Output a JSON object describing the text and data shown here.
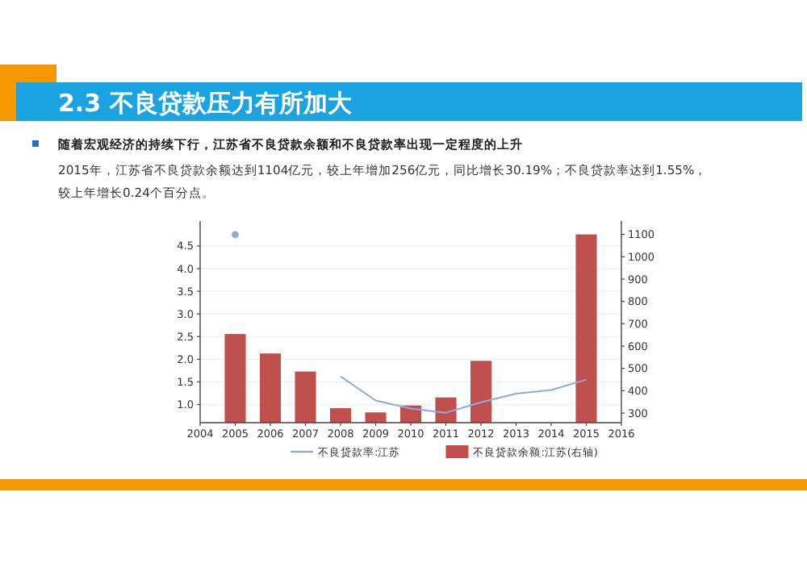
{
  "chart_data": {
    "type": "bar",
    "title": "2.3 不良贷款压力有所加大",
    "subtitle": "随着宏观经济的持续下行，江苏省不良贷款余额和不良贷款率出现一定程度的上升",
    "annotations": [
      "2015年，江苏省不良贷款余额达到1104亿元，较上年增加256亿元，同比增长30.19%；不良贷款率达到1.55%，较上年增长0.24个百分点。"
    ],
    "x": [
      2005,
      2006,
      2007,
      2008,
      2009,
      2010,
      2011,
      2012,
      2013,
      2014,
      2015
    ],
    "xlim": [
      2004,
      2016
    ],
    "xticks": [
      2004,
      2005,
      2006,
      2007,
      2008,
      2009,
      2010,
      2011,
      2012,
      2013,
      2014,
      2015,
      2016
    ],
    "ylim": [
      0.6,
      5.05
    ],
    "yticks": [
      {
        "value": 1,
        "label": "1.0"
      },
      {
        "value": 1.5,
        "label": "1.5"
      },
      {
        "value": 2,
        "label": "2.0"
      },
      {
        "value": 2.5,
        "label": "2.5"
      },
      {
        "value": 3,
        "label": "3.0"
      },
      {
        "value": 3.5,
        "label": "3.5"
      },
      {
        "value": 4,
        "label": "4.0"
      },
      {
        "value": 4.5,
        "label": "4.5"
      }
    ],
    "y2lim": [
      257,
      1160
    ],
    "y2ticks": [
      300,
      400,
      500,
      600,
      700,
      800,
      900,
      1000,
      1100
    ],
    "grid": "y",
    "legend": "bottom",
    "series": [
      {
        "name": "不良贷款率:江苏",
        "type": "line",
        "color": "#8eaadb",
        "values": [
          4.75,
          null,
          null,
          1.62,
          1.09,
          0.91,
          0.82,
          1.05,
          1.24,
          1.32,
          1.55
        ]
      },
      {
        "name": "不良贷款余额:江苏(右轴)",
        "axis": "y2",
        "color": "#c0504d",
        "values": [
          654,
          567,
          486,
          322,
          303,
          334,
          370,
          534,
          null,
          null,
          1100
        ]
      }
    ]
  }
}
